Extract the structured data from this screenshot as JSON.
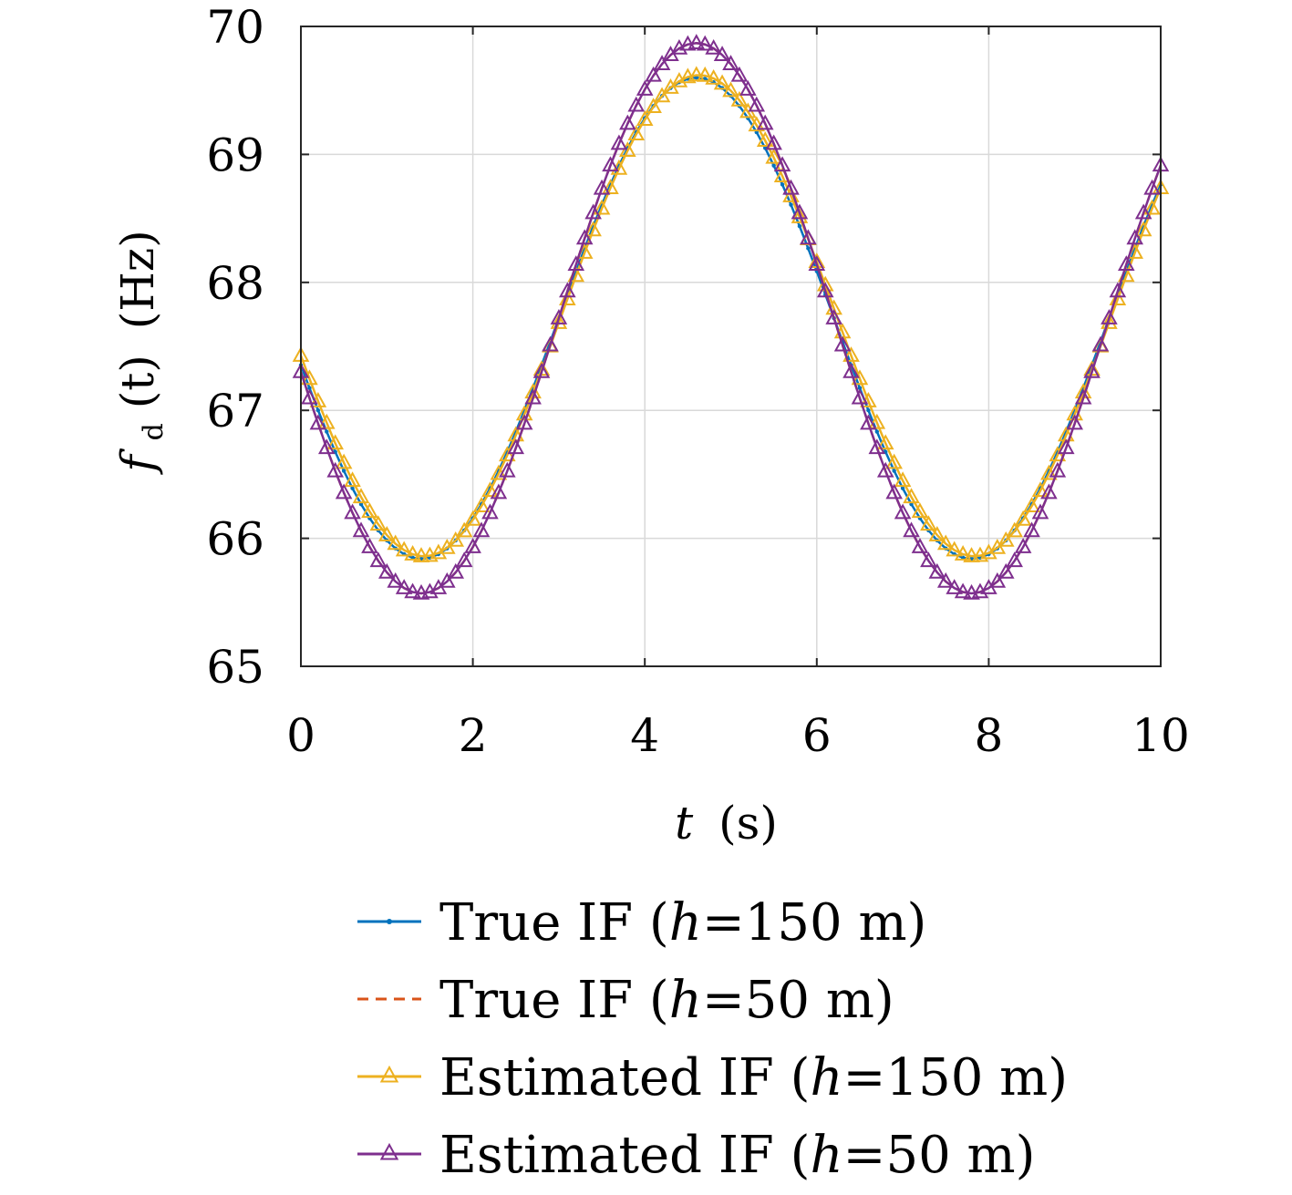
{
  "chart_data": {
    "type": "line",
    "title": "",
    "xlabel": "t (s)",
    "xlabel_var": "t",
    "xlabel_unit": "(s)",
    "ylabel": "f_d(t) (Hz)",
    "ylabel_var": "f",
    "ylabel_sub": "d",
    "ylabel_arg": "(t)",
    "ylabel_unit": "(Hz)",
    "xlim": [
      0,
      10
    ],
    "ylim": [
      65,
      70
    ],
    "xticks": [
      0,
      2,
      4,
      6,
      8,
      10
    ],
    "yticks": [
      65,
      66,
      67,
      68,
      69,
      70
    ],
    "grid": true,
    "legend_position": "below",
    "x_step": 0.1,
    "x_count": 101,
    "series": [
      {
        "name": "True IF (h=150 m)",
        "label_pre": "True IF (",
        "label_var": "h",
        "label_post": "=150 m)",
        "color": "#0072bd",
        "style": "solid-dot-marker",
        "model": {
          "mean": 67.72,
          "amplitude": 1.88,
          "period": 6.4,
          "peak_t": 4.6
        },
        "x_range": [
          0,
          10
        ]
      },
      {
        "name": "True IF (h=50 m)",
        "label_pre": "True IF (",
        "label_var": "h",
        "label_post": "=50 m)",
        "color": "#d95319",
        "style": "dashed",
        "model": {
          "mean": 67.72,
          "amplitude": 2.15,
          "period": 6.4,
          "peak_t": 4.6
        },
        "x_range": [
          0,
          10
        ]
      },
      {
        "name": "Estimated IF (h=150 m)",
        "label_pre": "Estimated IF (",
        "label_var": "h",
        "label_post": "=150 m)",
        "color": "#edb120",
        "style": "triangle-marker",
        "model": {
          "mean": 67.74,
          "amplitude": 1.88,
          "period": 6.4,
          "peak_t": 4.63
        },
        "x_range": [
          0,
          10
        ]
      },
      {
        "name": "Estimated IF (h=50 m)",
        "label_pre": "Estimated IF (",
        "label_var": "h",
        "label_post": "=50 m)",
        "color": "#7e2f8e",
        "style": "triangle-marker",
        "model": {
          "mean": 67.72,
          "amplitude": 2.15,
          "period": 6.4,
          "peak_t": 4.6
        },
        "x_range": [
          0,
          10
        ]
      }
    ]
  }
}
